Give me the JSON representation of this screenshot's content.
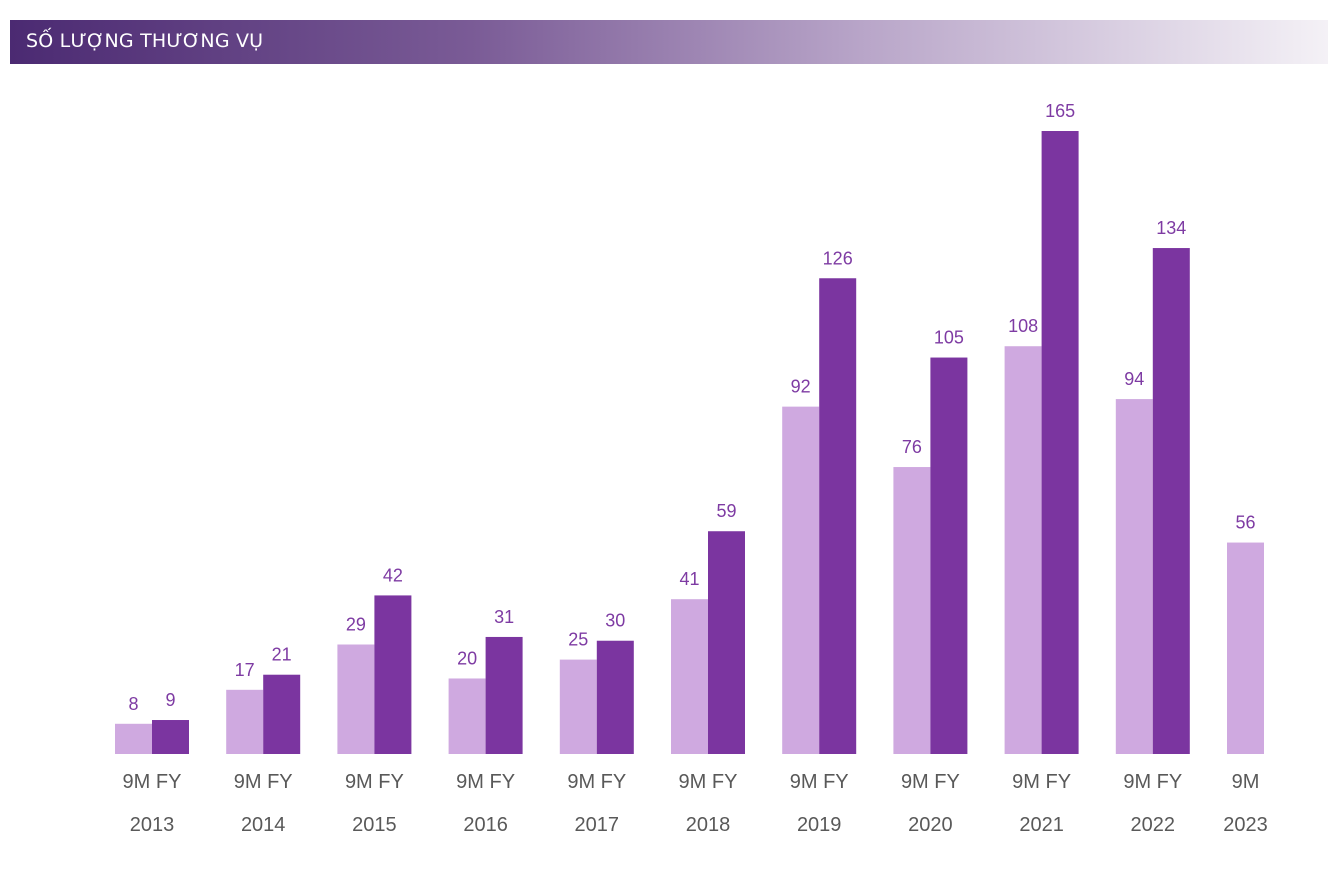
{
  "header": {
    "title": "SỐ LƯỢNG THƯƠNG VỤ"
  },
  "chart_data": {
    "type": "bar",
    "title": "SỐ LƯỢNG THƯƠNG VỤ",
    "categories": [
      [
        "9M FY",
        "2013"
      ],
      [
        "9M FY",
        "2014"
      ],
      [
        "9M FY",
        "2015"
      ],
      [
        "9M FY",
        "2016"
      ],
      [
        "9M FY",
        "2017"
      ],
      [
        "9M FY",
        "2018"
      ],
      [
        "9M FY",
        "2019"
      ],
      [
        "9M FY",
        "2020"
      ],
      [
        "9M FY",
        "2021"
      ],
      [
        "9M FY",
        "2022"
      ],
      [
        "9M",
        "2023"
      ]
    ],
    "series": [
      {
        "values": [
          8,
          17,
          29,
          20,
          25,
          41,
          92,
          76,
          108,
          94,
          56
        ],
        "color": "#cfa9e0"
      },
      {
        "values": [
          9,
          21,
          42,
          31,
          30,
          59,
          126,
          105,
          165,
          134,
          null
        ],
        "color": "#7b35a0"
      }
    ],
    "ylim": [
      0,
      165
    ],
    "grid": false,
    "data_labels": true,
    "label_color": "#7e3ba3"
  }
}
